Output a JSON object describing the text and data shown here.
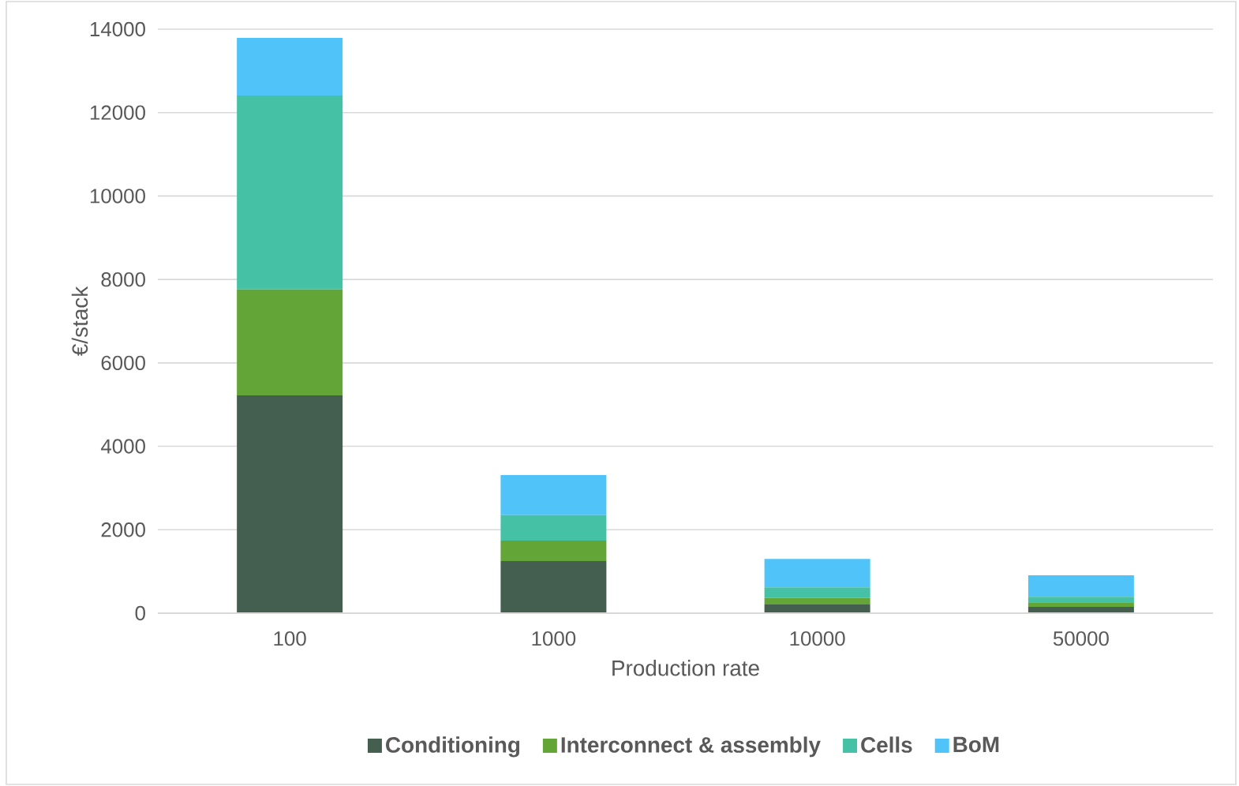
{
  "chart_data": {
    "type": "bar",
    "stacked": true,
    "xlabel": "Production rate",
    "ylabel": "€/stack",
    "categories": [
      "100",
      "1000",
      "10000",
      "50000"
    ],
    "series": [
      {
        "name": "Conditioning",
        "color": "#445f50",
        "values": [
          5220,
          1250,
          210,
          150
        ]
      },
      {
        "name": "Interconnect & assembly",
        "color": "#63a536",
        "values": [
          2540,
          490,
          160,
          110
        ]
      },
      {
        "name": "Cells",
        "color": "#45c2a5",
        "values": [
          4650,
          610,
          250,
          130
        ]
      },
      {
        "name": "BoM",
        "color": "#50c3f8",
        "values": [
          1380,
          960,
          680,
          520
        ]
      }
    ],
    "ylim": [
      0,
      14000
    ],
    "yticks": [
      0,
      2000,
      4000,
      6000,
      8000,
      10000,
      12000,
      14000
    ],
    "grid": "y",
    "legend": "bottom"
  }
}
